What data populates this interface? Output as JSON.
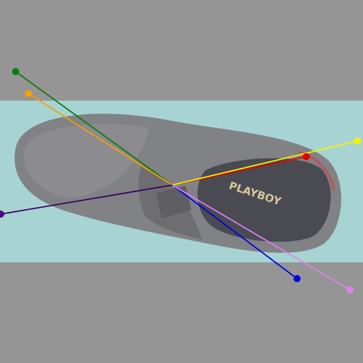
{
  "photo": {
    "subject": "shoe",
    "brand_text": "PLAYBOY",
    "colors": {
      "background": "#959595",
      "backdrop": "#a7d4d3",
      "shoe_body": "#7f7f81",
      "shoe_shadow": "#5f5f63",
      "insole": "#4a4a52",
      "brand_text": "#d8c6a0"
    }
  },
  "overlay": {
    "center_label": "",
    "rays": [
      {
        "name": "green-ray",
        "color": "#0c7a0c"
      },
      {
        "name": "orange-ray",
        "color": "#f4a000"
      },
      {
        "name": "red-ray",
        "color": "#e00000"
      },
      {
        "name": "yellow-ray",
        "color": "#f4f400"
      },
      {
        "name": "purple-ray",
        "color": "#4b007f"
      },
      {
        "name": "blue-ray",
        "color": "#0000e0"
      },
      {
        "name": "violet-ray",
        "color": "#e080f0"
      }
    ]
  }
}
